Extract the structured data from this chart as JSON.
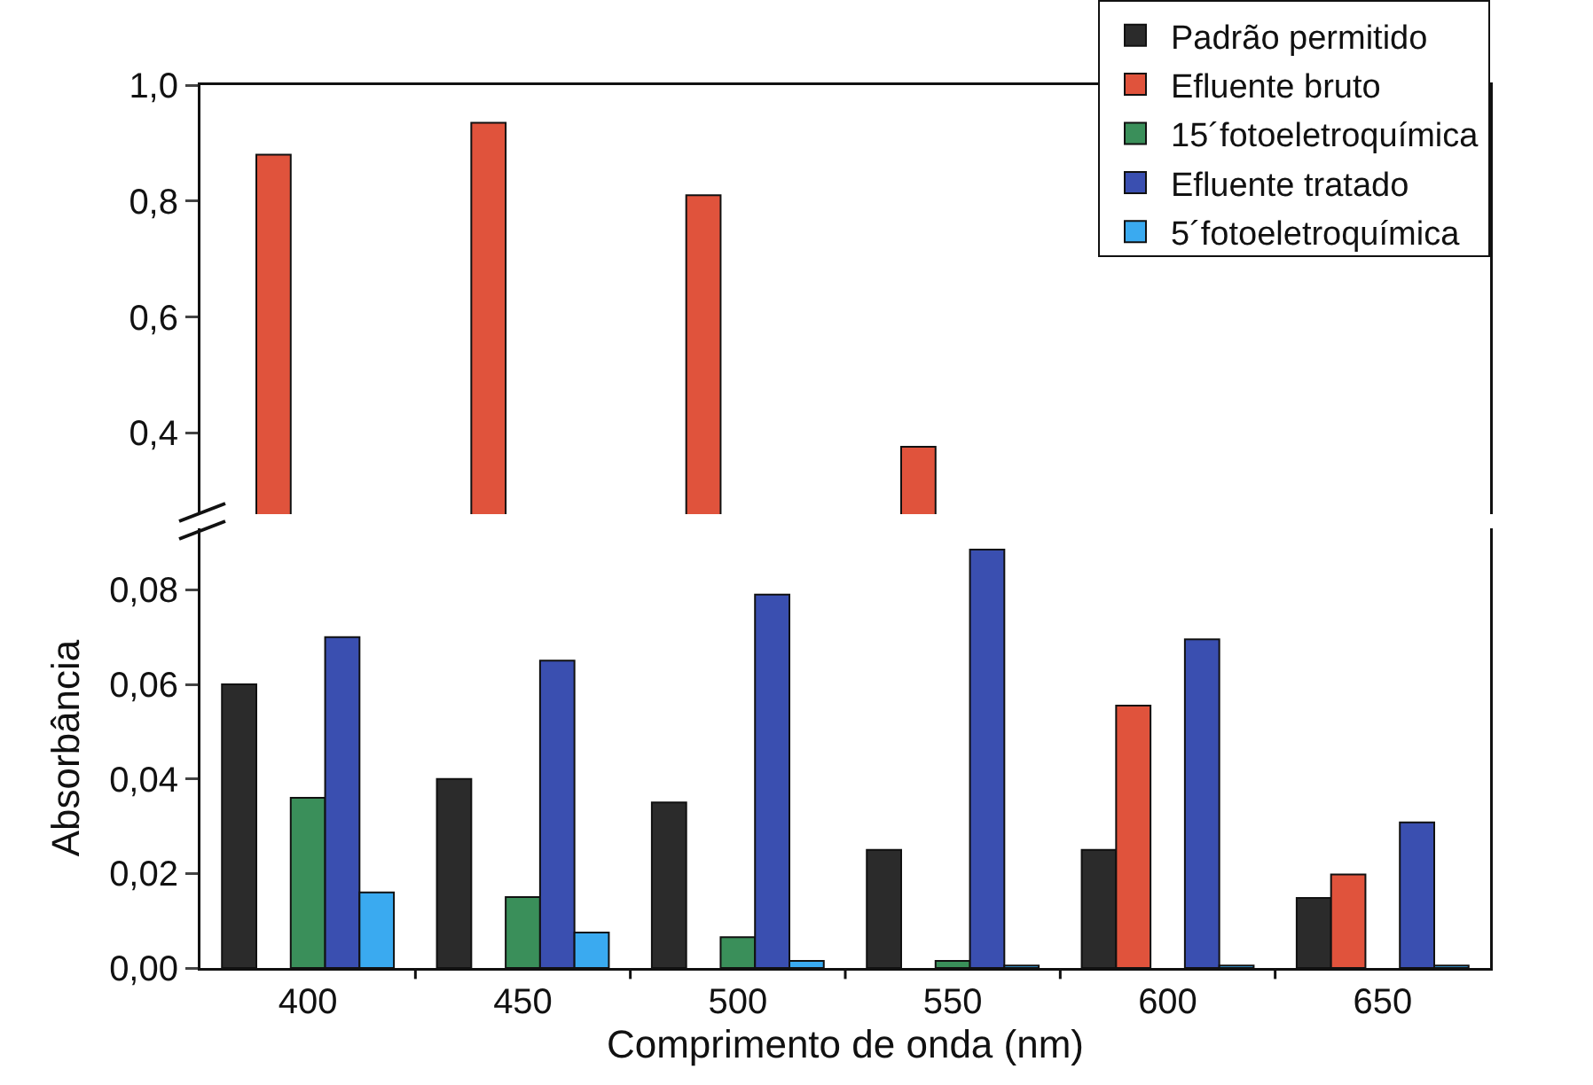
{
  "chart_data": [
    {
      "type": "bar",
      "categories": [
        "400",
        "450",
        "500",
        "550",
        "600",
        "650"
      ],
      "ylim": [
        0.26,
        1.0
      ],
      "yticks": [
        {
          "value": 0.4,
          "label": "0,4"
        },
        {
          "value": 0.6,
          "label": "0,6"
        },
        {
          "value": 0.8,
          "label": "0,8"
        },
        {
          "value": 1.0,
          "label": "1,0"
        }
      ],
      "tick_labels": "y",
      "legend": "top right",
      "grid": false,
      "series": [
        {
          "name": "Padrão permitido",
          "color": "#2b2b2b",
          "values": [
            null,
            null,
            null,
            null,
            null,
            null
          ]
        },
        {
          "name": "Efluente bruto",
          "color": "#e0533c",
          "values": [
            0.88,
            0.935,
            0.81,
            0.376,
            null,
            null
          ]
        },
        {
          "name": "15´fotoeletroquímica",
          "color": "#3a8f5a",
          "values": [
            null,
            null,
            null,
            null,
            null,
            null
          ]
        },
        {
          "name": "Efluente tratado",
          "color": "#3a4fb0",
          "values": [
            null,
            null,
            null,
            null,
            null,
            null
          ]
        },
        {
          "name": "5´fotoeletroquímica",
          "color": "#3aaaf0",
          "values": [
            null,
            null,
            null,
            null,
            null,
            null
          ]
        }
      ]
    },
    {
      "type": "bar",
      "categories": [
        "400",
        "450",
        "500",
        "550",
        "600",
        "650"
      ],
      "xlabel": "Comprimento de onda (nm)",
      "ylabel": "Absorbância",
      "ylim": [
        0,
        0.093
      ],
      "yticks": [
        {
          "value": 0,
          "label": "0,00"
        },
        {
          "value": 0.02,
          "label": "0,02"
        },
        {
          "value": 0.04,
          "label": "0,04"
        },
        {
          "value": 0.06,
          "label": "0,06"
        },
        {
          "value": 0.08,
          "label": "0,08"
        }
      ],
      "legend": false,
      "grid": false,
      "series": [
        {
          "color": "#2b2b2b",
          "values": [
            0.06,
            0.04,
            0.035,
            0.025,
            0.025,
            0.0148
          ]
        },
        {
          "color": "#e0533c",
          "values": [
            null,
            null,
            null,
            null,
            0.0555,
            0.0198
          ]
        },
        {
          "color": "#3a8f5a",
          "values": [
            0.036,
            0.015,
            0.0065,
            0.0015,
            null,
            null
          ]
        },
        {
          "color": "#3a4fb0",
          "values": [
            0.07,
            0.065,
            0.079,
            0.0885,
            0.0695,
            0.0308
          ]
        },
        {
          "color": "#3aaaf0",
          "values": [
            0.016,
            0.0075,
            0.0015,
            0.0005,
            0.0005,
            0.0005
          ]
        }
      ]
    }
  ]
}
